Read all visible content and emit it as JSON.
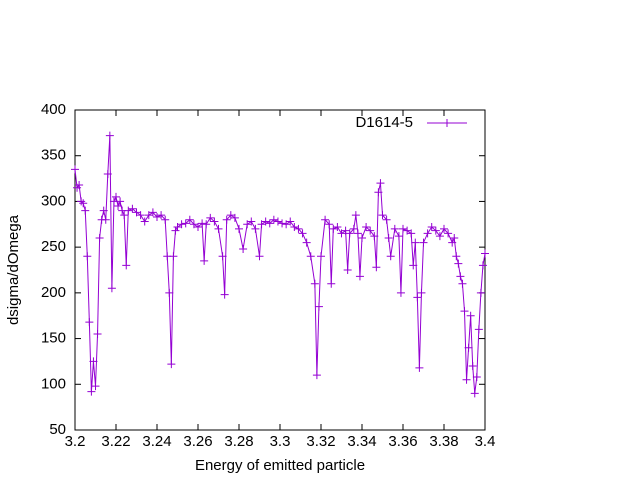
{
  "chart_data": {
    "type": "line",
    "xlabel": "Energy of emitted particle",
    "ylabel": "dsigma/dOmega",
    "legend": "top-right",
    "xlim": [
      3.2,
      3.4
    ],
    "ylim": [
      50,
      400
    ],
    "xticks": [
      3.2,
      3.22,
      3.24,
      3.26,
      3.28,
      3.3,
      3.32,
      3.34,
      3.36,
      3.38,
      3.4
    ],
    "yticks": [
      50,
      100,
      150,
      200,
      250,
      300,
      350,
      400
    ],
    "series": [
      {
        "name": "D1614-5",
        "color": "#9400d3",
        "x": [
          3.2,
          3.201,
          3.202,
          3.203,
          3.204,
          3.205,
          3.206,
          3.207,
          3.208,
          3.209,
          3.21,
          3.211,
          3.212,
          3.213,
          3.214,
          3.215,
          3.216,
          3.217,
          3.218,
          3.219,
          3.22,
          3.221,
          3.222,
          3.223,
          3.224,
          3.225,
          3.226,
          3.228,
          3.23,
          3.232,
          3.234,
          3.236,
          3.238,
          3.24,
          3.242,
          3.244,
          3.245,
          3.246,
          3.247,
          3.248,
          3.249,
          3.25,
          3.252,
          3.254,
          3.256,
          3.258,
          3.26,
          3.262,
          3.263,
          3.264,
          3.266,
          3.268,
          3.27,
          3.272,
          3.273,
          3.274,
          3.276,
          3.278,
          3.28,
          3.282,
          3.284,
          3.286,
          3.288,
          3.29,
          3.291,
          3.293,
          3.295,
          3.297,
          3.299,
          3.301,
          3.303,
          3.305,
          3.307,
          3.309,
          3.311,
          3.313,
          3.315,
          3.317,
          3.318,
          3.319,
          3.32,
          3.322,
          3.324,
          3.325,
          3.326,
          3.328,
          3.33,
          3.332,
          3.333,
          3.334,
          3.336,
          3.337,
          3.338,
          3.339,
          3.34,
          3.342,
          3.344,
          3.346,
          3.347,
          3.348,
          3.349,
          3.35,
          3.352,
          3.353,
          3.354,
          3.356,
          3.358,
          3.359,
          3.36,
          3.362,
          3.364,
          3.365,
          3.366,
          3.367,
          3.368,
          3.369,
          3.37,
          3.372,
          3.374,
          3.376,
          3.378,
          3.38,
          3.382,
          3.384,
          3.385,
          3.386,
          3.387,
          3.388,
          3.389,
          3.39,
          3.391,
          3.392,
          3.393,
          3.394,
          3.395,
          3.396,
          3.397,
          3.398,
          3.399,
          3.4
        ],
        "values": [
          335,
          315,
          318,
          300,
          298,
          290,
          240,
          168,
          92,
          125,
          98,
          155,
          260,
          280,
          290,
          280,
          330,
          372,
          205,
          300,
          305,
          295,
          300,
          290,
          285,
          230,
          290,
          292,
          288,
          285,
          278,
          285,
          288,
          283,
          285,
          280,
          240,
          200,
          122,
          240,
          268,
          272,
          275,
          276,
          280,
          275,
          272,
          276,
          235,
          275,
          282,
          278,
          270,
          240,
          198,
          280,
          285,
          282,
          270,
          248,
          275,
          278,
          270,
          240,
          275,
          278,
          276,
          280,
          278,
          276,
          275,
          278,
          272,
          270,
          265,
          255,
          240,
          210,
          110,
          185,
          240,
          280,
          275,
          210,
          270,
          272,
          265,
          268,
          225,
          265,
          270,
          285,
          265,
          218,
          260,
          272,
          268,
          262,
          228,
          310,
          320,
          285,
          280,
          260,
          240,
          270,
          262,
          200,
          270,
          268,
          265,
          230,
          255,
          195,
          118,
          200,
          255,
          265,
          272,
          268,
          262,
          270,
          265,
          255,
          260,
          240,
          232,
          218,
          210,
          180,
          105,
          140,
          175,
          120,
          90,
          108,
          160,
          200,
          230,
          243
        ]
      }
    ]
  }
}
